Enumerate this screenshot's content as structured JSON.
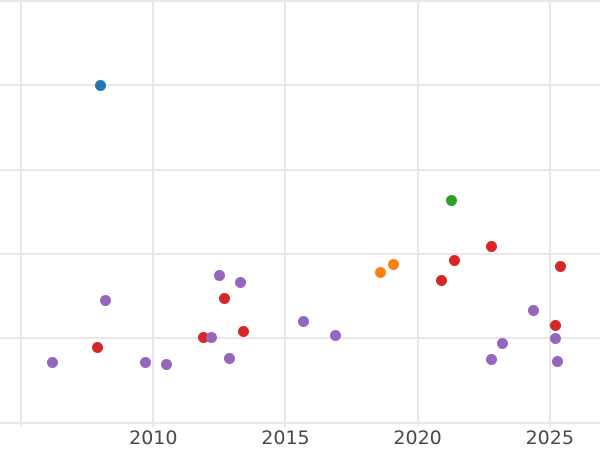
{
  "style": {
    "background": "#ffffff",
    "gridline_color": "#e8e8e8",
    "tick_label_color": "#4a4a4a"
  },
  "chart_data": {
    "type": "scatter",
    "title": "",
    "xlabel": "",
    "ylabel": "",
    "grid": true,
    "legend": "none",
    "x_ticks": [
      {
        "value": 2010,
        "label": "2010"
      },
      {
        "value": 2015,
        "label": "2015"
      },
      {
        "value": 2020,
        "label": "2020"
      },
      {
        "value": 2025,
        "label": "2025"
      }
    ],
    "x_gridline_years": [
      2005,
      2010,
      2015,
      2020,
      2025
    ],
    "y_gridline_units": [
      0,
      1,
      2,
      3,
      4,
      5
    ],
    "y_axis_labels_visible": false,
    "xlim": [
      2004.2,
      2026.9
    ],
    "ylim_units": [
      -0.05,
      5.01
    ],
    "marker_diameter_px": 11,
    "series": [
      {
        "name": "series-blue",
        "color": "#1f77b4",
        "points": [
          {
            "x": 2008.0,
            "y": 4.0
          }
        ]
      },
      {
        "name": "series-orange",
        "color": "#ff7f0e",
        "points": [
          {
            "x": 2018.6,
            "y": 1.78
          },
          {
            "x": 2019.1,
            "y": 1.87
          }
        ]
      },
      {
        "name": "series-green",
        "color": "#2ca02c",
        "points": [
          {
            "x": 2021.3,
            "y": 2.63
          }
        ]
      },
      {
        "name": "series-red",
        "color": "#d62728",
        "points": [
          {
            "x": 2007.9,
            "y": 0.89
          },
          {
            "x": 2011.9,
            "y": 1.01
          },
          {
            "x": 2012.7,
            "y": 1.47
          },
          {
            "x": 2013.4,
            "y": 1.08
          },
          {
            "x": 2020.9,
            "y": 1.69
          },
          {
            "x": 2021.4,
            "y": 1.92
          },
          {
            "x": 2022.8,
            "y": 2.09
          },
          {
            "x": 2025.2,
            "y": 1.15
          },
          {
            "x": 2025.4,
            "y": 1.85
          }
        ]
      },
      {
        "name": "series-purple",
        "color": "#9467bd",
        "points": [
          {
            "x": 2006.2,
            "y": 0.71
          },
          {
            "x": 2008.2,
            "y": 1.45
          },
          {
            "x": 2009.7,
            "y": 0.72
          },
          {
            "x": 2010.5,
            "y": 0.69
          },
          {
            "x": 2012.2,
            "y": 1.01
          },
          {
            "x": 2012.5,
            "y": 1.75
          },
          {
            "x": 2012.9,
            "y": 0.76
          },
          {
            "x": 2013.3,
            "y": 1.66
          },
          {
            "x": 2015.7,
            "y": 1.2
          },
          {
            "x": 2016.9,
            "y": 1.04
          },
          {
            "x": 2022.8,
            "y": 0.75
          },
          {
            "x": 2023.2,
            "y": 0.94
          },
          {
            "x": 2024.4,
            "y": 1.33
          },
          {
            "x": 2025.2,
            "y": 1.0
          },
          {
            "x": 2025.3,
            "y": 0.73
          }
        ]
      }
    ]
  }
}
